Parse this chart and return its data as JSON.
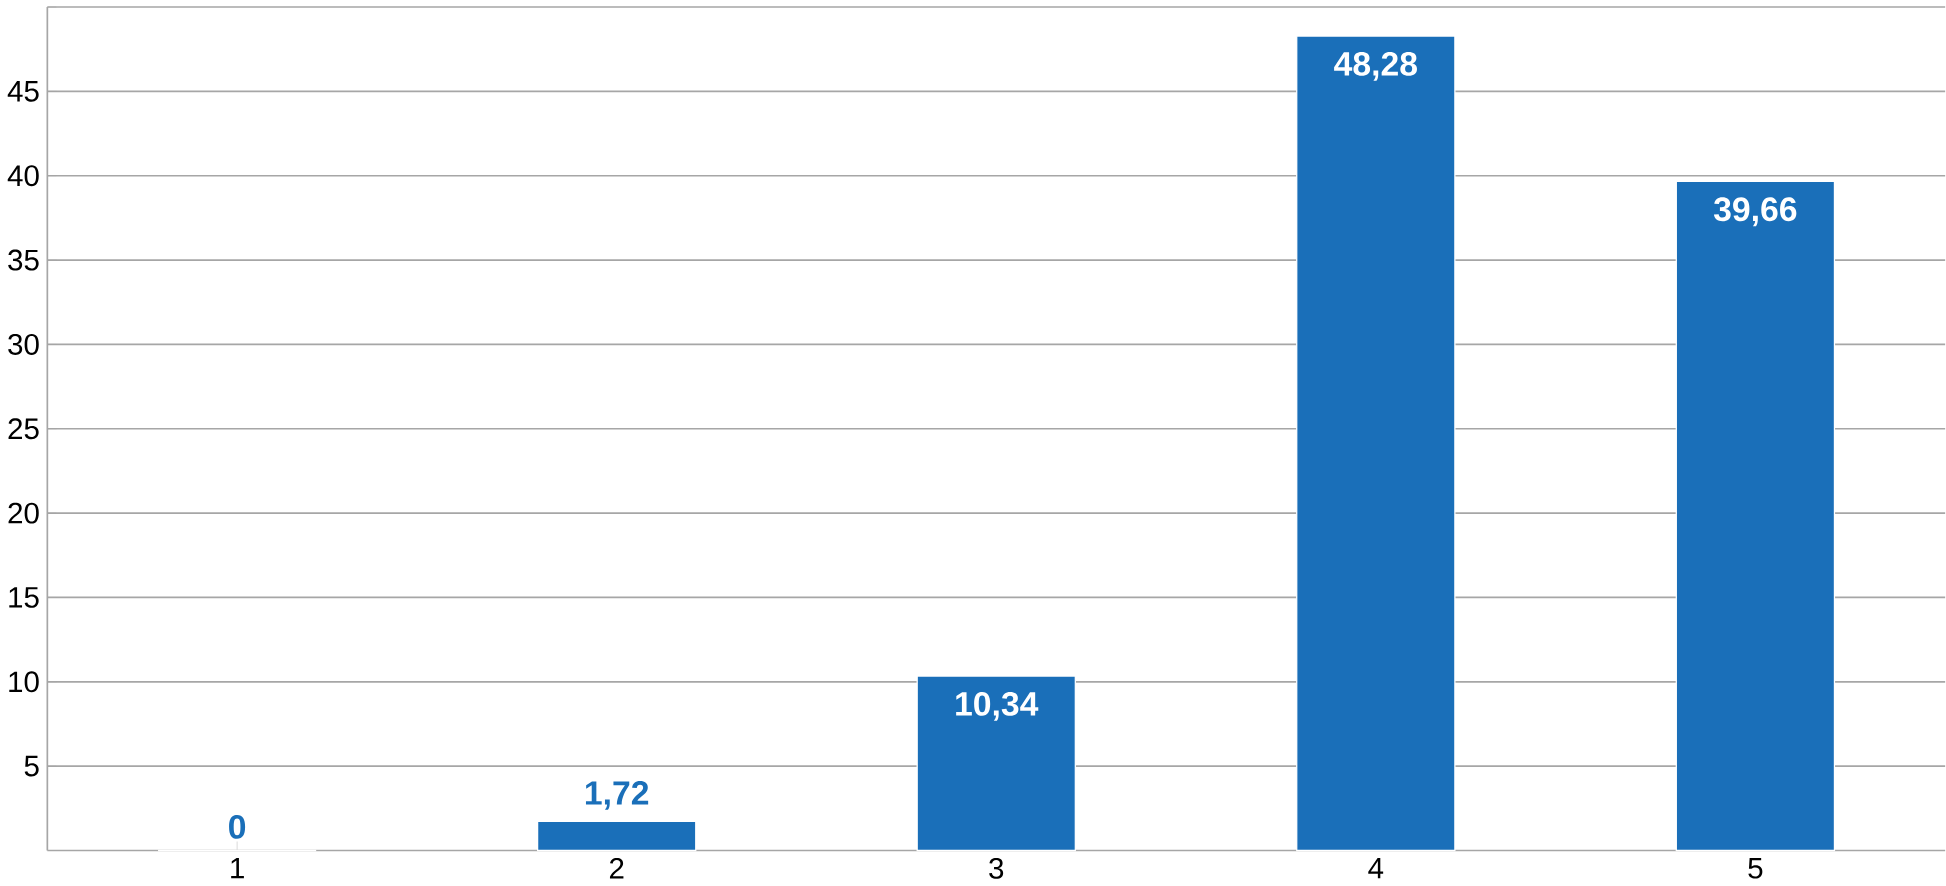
{
  "chart_data": {
    "type": "bar",
    "categories": [
      "1",
      "2",
      "3",
      "4",
      "5"
    ],
    "values": [
      0,
      1.72,
      10.34,
      48.28,
      39.66
    ],
    "value_labels": [
      "0",
      "1,72",
      "10,34",
      "48,28",
      "39,66"
    ],
    "color": "#1a6fb9",
    "ylim": [
      0,
      50
    ],
    "yticks": [
      5,
      10,
      15,
      20,
      25,
      30,
      35,
      40,
      45,
      {
        "value": 50,
        "label": null
      }
    ],
    "grid": "y"
  }
}
